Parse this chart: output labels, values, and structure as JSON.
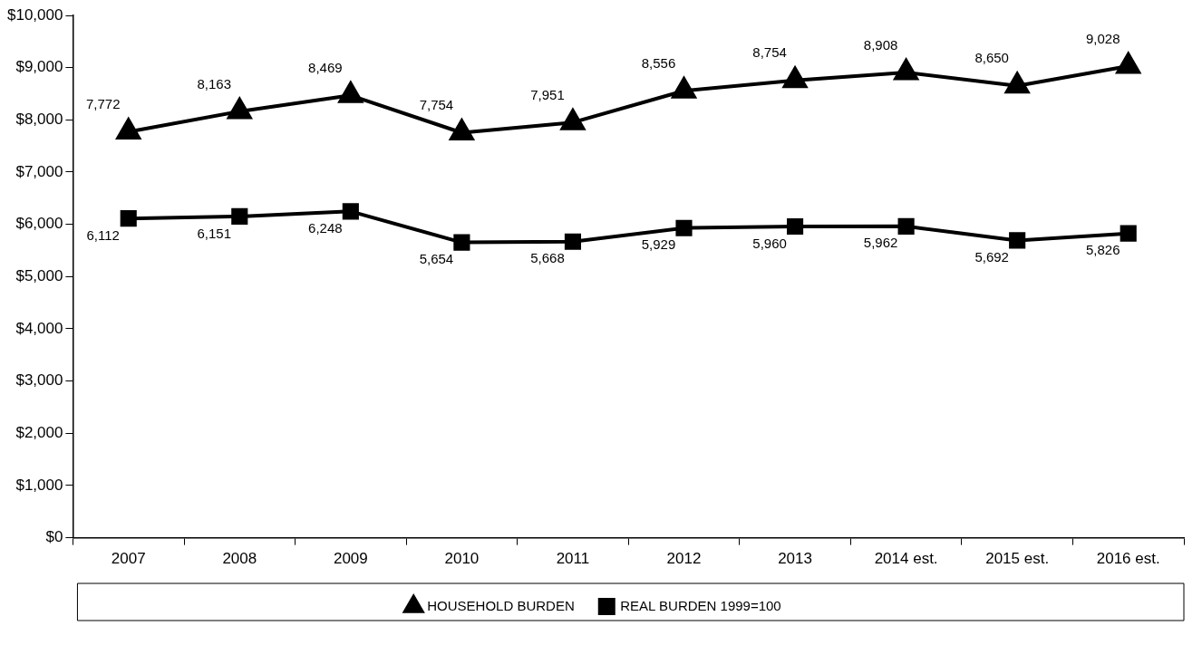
{
  "chart_data": {
    "type": "line",
    "categories": [
      "2007",
      "2008",
      "2009",
      "2010",
      "2011",
      "2012",
      "2013",
      "2014 est.",
      "2015 est.",
      "2016 est."
    ],
    "series": [
      {
        "name": "HOUSEHOLD BURDEN",
        "color": "#000000",
        "marker": "triangle",
        "values": [
          7772,
          8163,
          8469,
          7754,
          7951,
          8556,
          8754,
          8908,
          8650,
          9028
        ],
        "value_labels": [
          "7,772",
          "8,163",
          "8,469",
          "7,754",
          "7,951",
          "8,556",
          "8,754",
          "8,908",
          "8,650",
          "9,028"
        ]
      },
      {
        "name": "REAL BURDEN 1999=100",
        "color": "#000000",
        "marker": "square",
        "values": [
          6112,
          6151,
          6248,
          5654,
          5668,
          5929,
          5960,
          5962,
          5692,
          5826
        ],
        "value_labels": [
          "6,112",
          "6,151",
          "6,248",
          "5,654",
          "5,668",
          "5,929",
          "5,960",
          "5,962",
          "5,692",
          "5,826"
        ]
      }
    ],
    "ylim": [
      0,
      10000
    ],
    "yticks": [
      {
        "value": 0,
        "label": "$0"
      },
      {
        "value": 1000,
        "label": "$1,000"
      },
      {
        "value": 2000,
        "label": "$2,000"
      },
      {
        "value": 3000,
        "label": "$3,000"
      },
      {
        "value": 4000,
        "label": "$4,000"
      },
      {
        "value": 5000,
        "label": "$5,000"
      },
      {
        "value": 6000,
        "label": "$6,000"
      },
      {
        "value": 7000,
        "label": "$7,000"
      },
      {
        "value": 8000,
        "label": "$8,000"
      },
      {
        "value": 9000,
        "label": "$9,000"
      },
      {
        "value": 10000,
        "label": "$10,000"
      }
    ],
    "grid": false,
    "legend": "bottom",
    "line_style": "solid"
  }
}
